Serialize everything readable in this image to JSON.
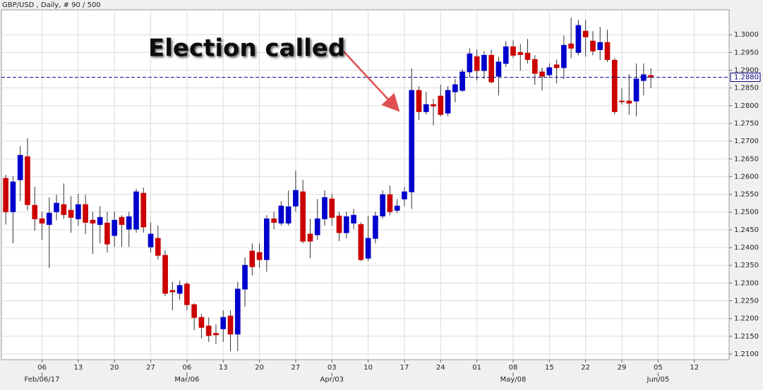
{
  "chart_data": {
    "type": "candlestick",
    "title": "GBP/USD , Daily, # 90 / 500",
    "annotation": "Election called",
    "up_color": "#0000cc",
    "down_color": "#cc0000",
    "grid": true,
    "open": [
      1.2595,
      1.2501,
      1.2591,
      1.2656,
      1.2519,
      1.2481,
      1.2465,
      1.2501,
      1.2521,
      1.2505,
      1.2481,
      1.2521,
      1.2477,
      1.2465,
      1.2469,
      1.2434,
      1.2485,
      1.2452,
      1.2452,
      1.2553,
      1.2402,
      1.2426,
      1.2378,
      1.2279,
      1.2271,
      1.2297,
      1.2239,
      1.2203,
      1.2179,
      1.2158,
      1.2171,
      1.2207,
      1.2156,
      1.2283,
      1.239,
      1.2386,
      1.2366,
      1.2481,
      1.2469,
      1.2469,
      1.2517,
      1.2557,
      1.2438,
      1.2436,
      1.2481,
      1.2537,
      1.2489,
      1.2442,
      1.2469,
      1.2465,
      1.237,
      1.2426,
      1.2489,
      1.2549,
      1.2505,
      1.2537,
      1.2557,
      1.2843,
      1.2783,
      1.2803,
      1.2827,
      1.2779,
      1.2839,
      1.2843,
      1.2895,
      1.2938,
      1.2899,
      1.2942,
      1.2883,
      1.2919,
      1.2966,
      1.295,
      1.2948,
      1.293,
      1.2895,
      1.2887,
      1.2915,
      1.2907,
      1.2974,
      1.295,
      1.301,
      1.2982,
      1.2958,
      1.2978,
      1.2928,
      1.2813,
      1.2813,
      1.2813,
      1.2871,
      1.2885
    ],
    "high": [
      1.2605,
      1.2601,
      1.2686,
      1.2708,
      1.2571,
      1.2501,
      1.2541,
      1.2549,
      1.2581,
      1.2545,
      1.2551,
      1.2549,
      1.2501,
      1.2517,
      1.2501,
      1.2501,
      1.2491,
      1.2501,
      1.2565,
      1.2569,
      1.2471,
      1.2462,
      1.2392,
      1.2303,
      1.2307,
      1.2303,
      1.2243,
      1.2213,
      1.2203,
      1.2183,
      1.2223,
      1.2223,
      1.2303,
      1.2372,
      1.2412,
      1.2412,
      1.2491,
      1.2501,
      1.2531,
      1.2561,
      1.2617,
      1.2591,
      1.2481,
      1.2537,
      1.2561,
      1.2551,
      1.2501,
      1.2501,
      1.2509,
      1.2471,
      1.2489,
      1.2501,
      1.2561,
      1.2575,
      1.2537,
      1.2571,
      1.2905,
      1.2855,
      1.2839,
      1.2819,
      1.2859,
      1.2855,
      1.2875,
      1.2903,
      1.2962,
      1.2958,
      1.2954,
      1.2958,
      1.2938,
      1.2982,
      1.2984,
      1.2974,
      1.2988,
      1.2942,
      1.2907,
      1.2919,
      1.293,
      1.2998,
      1.3048,
      1.3042,
      1.3042,
      1.301,
      1.3022,
      1.3014,
      1.2934,
      1.2849,
      1.2889,
      1.2919,
      1.2919,
      1.2905
    ],
    "low": [
      1.2465,
      1.2412,
      1.2531,
      1.2505,
      1.2448,
      1.2422,
      1.2342,
      1.2477,
      1.2481,
      1.2442,
      1.2462,
      1.2438,
      1.2382,
      1.2412,
      1.2386,
      1.2402,
      1.2402,
      1.2402,
      1.2442,
      1.2442,
      1.2386,
      1.2366,
      1.2263,
      1.2223,
      1.2253,
      1.2223,
      1.2167,
      1.2144,
      1.2134,
      1.2128,
      1.2134,
      1.2108,
      1.2108,
      1.2233,
      1.2322,
      1.2342,
      1.2332,
      1.2452,
      1.2462,
      1.2462,
      1.2501,
      1.2412,
      1.237,
      1.2422,
      1.2462,
      1.2462,
      1.2418,
      1.2426,
      1.2452,
      1.2362,
      1.2362,
      1.2412,
      1.2481,
      1.2491,
      1.2497,
      1.2517,
      1.2509,
      1.276,
      1.2775,
      1.2744,
      1.277,
      1.277,
      1.2809,
      1.2839,
      1.2879,
      1.2871,
      1.2875,
      1.2863,
      1.2829,
      1.2909,
      1.2934,
      1.2899,
      1.2919,
      1.2859,
      1.2843,
      1.2879,
      1.2863,
      1.2875,
      1.2934,
      1.2942,
      1.2938,
      1.2942,
      1.2928,
      1.2923,
      1.2775,
      1.2803,
      1.2775,
      1.277,
      1.2829,
      1.2849
    ],
    "close": [
      1.2501,
      1.2585,
      1.266,
      1.2521,
      1.2481,
      1.2469,
      1.2497,
      1.2525,
      1.2493,
      1.2485,
      1.2521,
      1.2471,
      1.2469,
      1.2485,
      1.241,
      1.2477,
      1.2465,
      1.2487,
      1.2557,
      1.2458,
      1.2438,
      1.2378,
      1.2271,
      1.2275,
      1.2293,
      1.2239,
      1.2203,
      1.2175,
      1.2152,
      1.2154,
      1.2203,
      1.2156,
      1.2283,
      1.235,
      1.2346,
      1.2366,
      1.2481,
      1.2471,
      1.2517,
      1.2515,
      1.2561,
      1.2418,
      1.2418,
      1.2481,
      1.2541,
      1.2485,
      1.2442,
      1.2487,
      1.2491,
      1.2366,
      1.2426,
      1.2489,
      1.2549,
      1.2501,
      1.2517,
      1.2557,
      1.2843,
      1.2783,
      1.2803,
      1.2799,
      1.2775,
      1.2843,
      1.2859,
      1.2895,
      1.2946,
      1.2899,
      1.2942,
      1.2867,
      1.2923,
      1.2966,
      1.2942,
      1.2944,
      1.293,
      1.2891,
      1.2883,
      1.2907,
      1.2907,
      1.297,
      1.2962,
      1.3026,
      1.2994,
      1.2954,
      1.2978,
      1.293,
      1.2783,
      1.2811,
      1.2807,
      1.2875,
      1.2887,
      1.288
    ],
    "current_price": {
      "value": 1.288,
      "label": "1.2880"
    },
    "ylim": [
      1.2084,
      1.307
    ],
    "yticks": [
      {
        "value": 1.21,
        "label": "1.2100"
      },
      {
        "value": 1.215,
        "label": "1.2150"
      },
      {
        "value": 1.22,
        "label": "1.2200"
      },
      {
        "value": 1.225,
        "label": "1.2250"
      },
      {
        "value": 1.23,
        "label": "1.2300"
      },
      {
        "value": 1.235,
        "label": "1.2350"
      },
      {
        "value": 1.24,
        "label": "1.2400"
      },
      {
        "value": 1.245,
        "label": "1.2450"
      },
      {
        "value": 1.25,
        "label": "1.2500"
      },
      {
        "value": 1.255,
        "label": "1.2550"
      },
      {
        "value": 1.26,
        "label": "1.2600"
      },
      {
        "value": 1.265,
        "label": "1.2650"
      },
      {
        "value": 1.27,
        "label": "1.2700"
      },
      {
        "value": 1.275,
        "label": "1.2750"
      },
      {
        "value": 1.28,
        "label": "1.2800"
      },
      {
        "value": 1.285,
        "label": "1.2850"
      },
      {
        "value": 1.29,
        "label": "1.2900"
      },
      {
        "value": 1.295,
        "label": "1.2950"
      },
      {
        "value": 1.3,
        "label": "1.3000"
      }
    ],
    "xlim": [
      -0.6,
      99.8
    ],
    "xticks": [
      {
        "value": 5,
        "label": "06"
      },
      {
        "value": 10,
        "label": "13"
      },
      {
        "value": 15,
        "label": "20"
      },
      {
        "value": 20,
        "label": "27"
      },
      {
        "value": 25,
        "label": "06"
      },
      {
        "value": 30,
        "label": "13"
      },
      {
        "value": 35,
        "label": "20"
      },
      {
        "value": 40,
        "label": "27"
      },
      {
        "value": 45,
        "label": "03"
      },
      {
        "value": 50,
        "label": "10"
      },
      {
        "value": 55,
        "label": "17"
      },
      {
        "value": 60,
        "label": "24"
      },
      {
        "value": 65,
        "label": "01"
      },
      {
        "value": 70,
        "label": "08"
      },
      {
        "value": 75,
        "label": "15"
      },
      {
        "value": 80,
        "label": "22"
      },
      {
        "value": 85,
        "label": "29"
      },
      {
        "value": 90,
        "label": "05"
      },
      {
        "value": 95,
        "label": "12"
      }
    ],
    "xticks_major": [
      {
        "value": 5,
        "label": "Feb/06/17"
      },
      {
        "value": 25,
        "label": "Mar/06"
      },
      {
        "value": 45,
        "label": "Apr/03"
      },
      {
        "value": 70,
        "label": "May/08"
      },
      {
        "value": 90,
        "label": "Jun/05"
      }
    ]
  }
}
